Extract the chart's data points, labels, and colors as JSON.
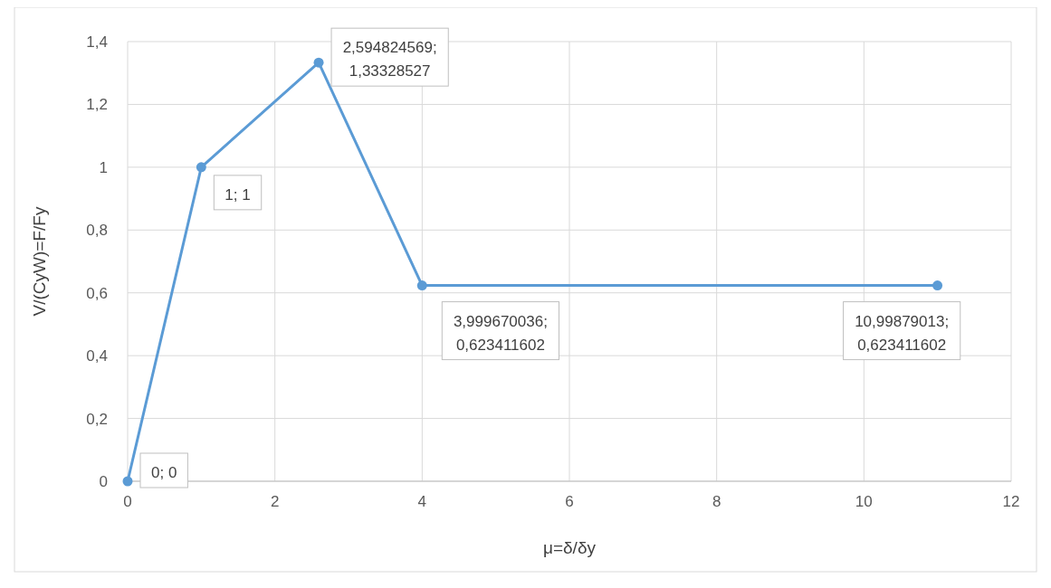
{
  "chart_data": {
    "type": "line",
    "xlabel": "μ=δ/δy",
    "ylabel": "V/(CyW)=F/Fy",
    "x": [
      0,
      1,
      2.594824569,
      3.999670036,
      10.99879013
    ],
    "series": [
      {
        "color": "#5b9bd5",
        "values": [
          0,
          1,
          1.33328527,
          0.623411602,
          0.623411602
        ],
        "value_labels": [
          "0; 0",
          "1; 1",
          "2,594824569; 1,33328527",
          "3,999670036; 0,623411602",
          "10,99879013; 0,623411602"
        ]
      }
    ],
    "xlim": [
      0,
      12
    ],
    "xticks": [
      0,
      2,
      4,
      6,
      8,
      10,
      12
    ],
    "ylim": [
      0,
      1.4
    ],
    "yticks": [
      0,
      {
        "value": 0.2,
        "label": "0,2"
      },
      {
        "value": 0.4,
        "label": "0,4"
      },
      {
        "value": 0.6,
        "label": "0,6"
      },
      {
        "value": 0.8,
        "label": "0,8"
      },
      1,
      {
        "value": 1.2,
        "label": "1,2"
      },
      {
        "value": 1.4,
        "label": "1,4"
      }
    ],
    "grid": true,
    "marker": "circle",
    "line_style": "solid"
  }
}
